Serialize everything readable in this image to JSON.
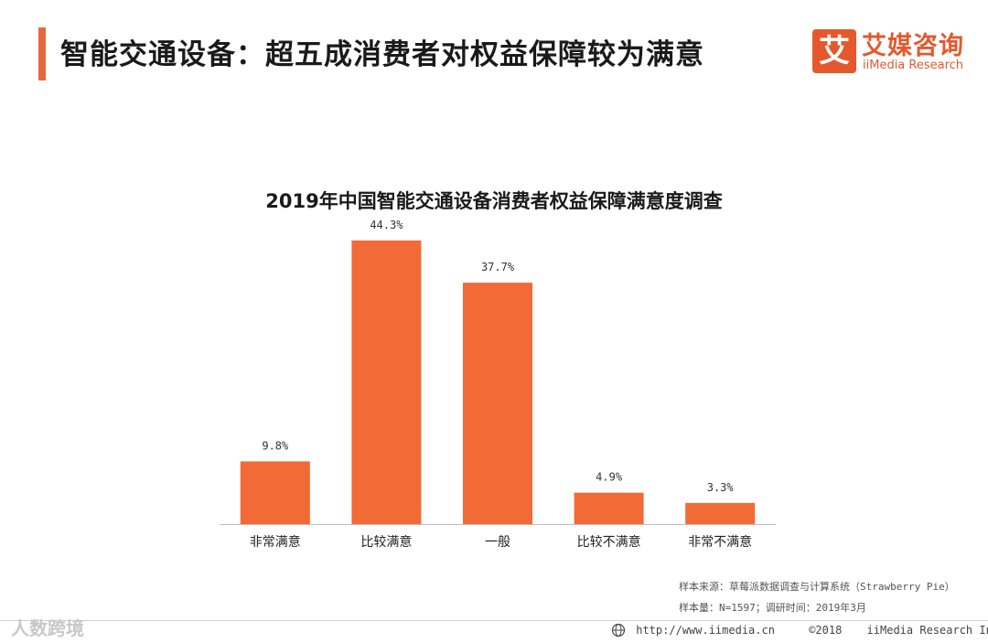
{
  "header": {
    "title": "智能交通设备：超五成消费者对权益保障较为满意",
    "logo_mark": "艾",
    "logo_cn": "艾媒咨询",
    "logo_en": "iiMedia Research"
  },
  "chart_data": {
    "type": "bar",
    "title": "2019年中国智能交通设备消费者权益保障满意度调查",
    "categories": [
      "非常满意",
      "比较满意",
      "一般",
      "比较不满意",
      "非常不满意"
    ],
    "values": [
      9.8,
      44.3,
      37.7,
      4.9,
      3.3
    ],
    "value_labels": [
      "9.8%",
      "44.3%",
      "37.7%",
      "4.9%",
      "3.3%"
    ],
    "unit": "%",
    "ylim": [
      0,
      50
    ],
    "grid": false,
    "bar_color": "#f26a35",
    "xlabel": "",
    "ylabel": ""
  },
  "footnotes": {
    "source": "样本来源：草莓派数据调查与计算系统（Strawberry Pie）",
    "sample": "样本量：N=1597；调研时间：2019年3月"
  },
  "footer": {
    "url": "http://www.iimedia.cn",
    "copyright": "©2018",
    "company": "iiMedia Research Inc",
    "watermark": "人数跨境"
  },
  "colors": {
    "accent": "#e8683b",
    "brand": "#e5582e"
  }
}
